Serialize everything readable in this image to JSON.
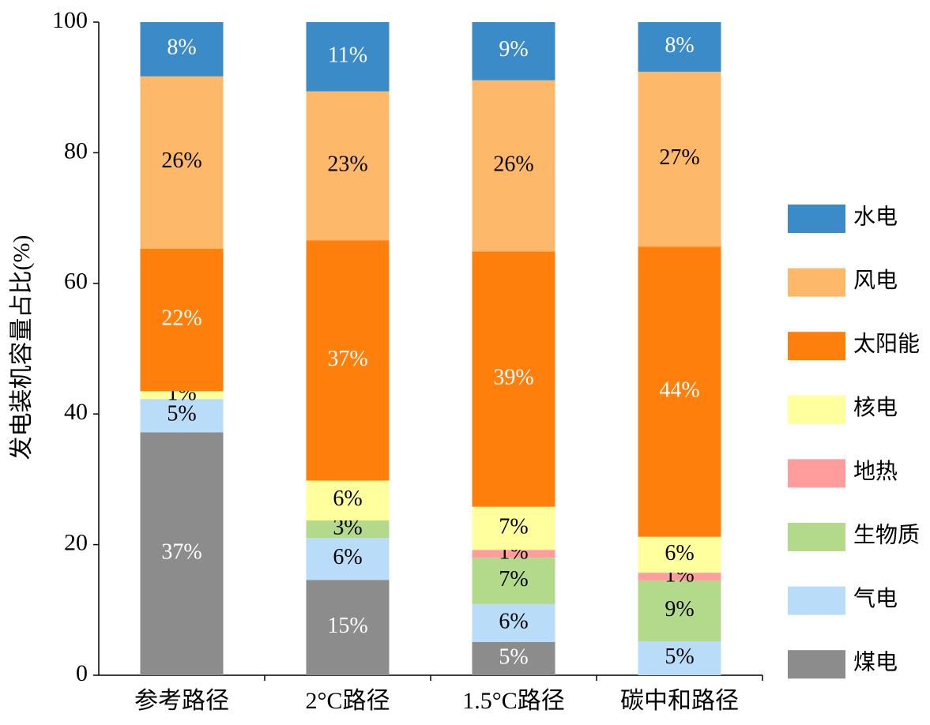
{
  "chart_data": {
    "type": "stacked_bar",
    "ylabel": "发电装机容量占比(%)",
    "categories": [
      "参考路径",
      "2°C路径",
      "1.5°C路径",
      "碳中和路径"
    ],
    "ylim": [
      0,
      100
    ],
    "yticks": [
      0,
      20,
      40,
      60,
      80,
      100
    ],
    "series": [
      {
        "name": "煤电",
        "color": "#8c8c8c",
        "label_color": "#ffffff",
        "values": [
          37.2,
          14.6,
          5.1,
          0
        ],
        "value_labels": [
          "37%",
          "15%",
          "5%",
          null
        ]
      },
      {
        "name": "气电",
        "color": "#b9ddf9",
        "label_color": "#000000",
        "values": [
          5.1,
          6.4,
          5.8,
          5.2
        ],
        "value_labels": [
          "5%",
          "6%",
          "6%",
          "5%"
        ]
      },
      {
        "name": "生物质",
        "color": "#b3d98a",
        "label_color": "#000000",
        "values": [
          0,
          2.7,
          7.1,
          9.3
        ],
        "value_labels": [
          null,
          "3%",
          "7%",
          "9%"
        ]
      },
      {
        "name": "地热",
        "color": "#ff9d9d",
        "label_color": "#000000",
        "values": [
          0,
          0,
          1.2,
          1.2
        ],
        "value_labels": [
          null,
          null,
          "1%",
          "1%"
        ]
      },
      {
        "name": "核电",
        "color": "#ffff9e",
        "label_color": "#000000",
        "values": [
          1.2,
          6.1,
          6.6,
          5.5
        ],
        "value_labels": [
          "1%",
          "6%",
          "7%",
          "6%"
        ]
      },
      {
        "name": "太阳能",
        "color": "#fe7f0b",
        "label_color": "#ffffff",
        "values": [
          21.8,
          36.8,
          39.1,
          44.4
        ],
        "value_labels": [
          "22%",
          "37%",
          "39%",
          "44%"
        ]
      },
      {
        "name": "风电",
        "color": "#fdb86a",
        "label_color": "#000000",
        "values": [
          26.4,
          22.8,
          26.2,
          26.8
        ],
        "value_labels": [
          "26%",
          "23%",
          "26%",
          "27%"
        ]
      },
      {
        "name": "水电",
        "color": "#3b8bc9",
        "label_color": "#ffffff",
        "values": [
          8.3,
          10.6,
          8.9,
          7.6
        ],
        "value_labels": [
          "8%",
          "11%",
          "9%",
          "8%"
        ]
      }
    ]
  }
}
